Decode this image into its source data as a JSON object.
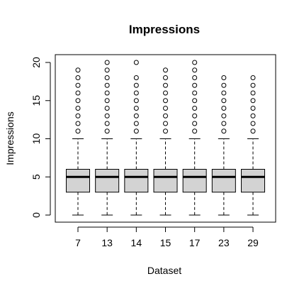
{
  "chart_data": {
    "type": "boxplot",
    "title": "Impressions",
    "xlabel": "Dataset",
    "ylabel": "Impressions",
    "ylim": [
      0,
      20
    ],
    "yticks": [
      0,
      5,
      10,
      15,
      20
    ],
    "categories": [
      "7",
      "13",
      "14",
      "15",
      "17",
      "23",
      "29"
    ],
    "boxes": [
      {
        "min": 0,
        "q1": 3,
        "median": 5,
        "q3": 6,
        "max": 10,
        "outliers": [
          11,
          12,
          13,
          14,
          15,
          16,
          17,
          18,
          19
        ]
      },
      {
        "min": 0,
        "q1": 3,
        "median": 5,
        "q3": 6,
        "max": 10,
        "outliers": [
          11,
          12,
          13,
          14,
          15,
          16,
          17,
          18,
          19,
          20
        ]
      },
      {
        "min": 0,
        "q1": 3,
        "median": 5,
        "q3": 6,
        "max": 10,
        "outliers": [
          11,
          12,
          13,
          14,
          15,
          16,
          17,
          18,
          20
        ]
      },
      {
        "min": 0,
        "q1": 3,
        "median": 5,
        "q3": 6,
        "max": 10,
        "outliers": [
          11,
          12,
          13,
          14,
          15,
          16,
          17,
          18,
          19
        ]
      },
      {
        "min": 0,
        "q1": 3,
        "median": 5,
        "q3": 6,
        "max": 10,
        "outliers": [
          11,
          12,
          13,
          14,
          15,
          16,
          17,
          18,
          19,
          20
        ]
      },
      {
        "min": 0,
        "q1": 3,
        "median": 5,
        "q3": 6,
        "max": 10,
        "outliers": [
          11,
          12,
          13,
          14,
          15,
          16,
          17,
          18
        ]
      },
      {
        "min": 0,
        "q1": 3,
        "median": 5,
        "q3": 6,
        "max": 10,
        "outliers": [
          11,
          12,
          13,
          14,
          15,
          16,
          17,
          18
        ]
      }
    ],
    "box_fill": "#d3d3d3",
    "grid": false,
    "legend": "none"
  }
}
